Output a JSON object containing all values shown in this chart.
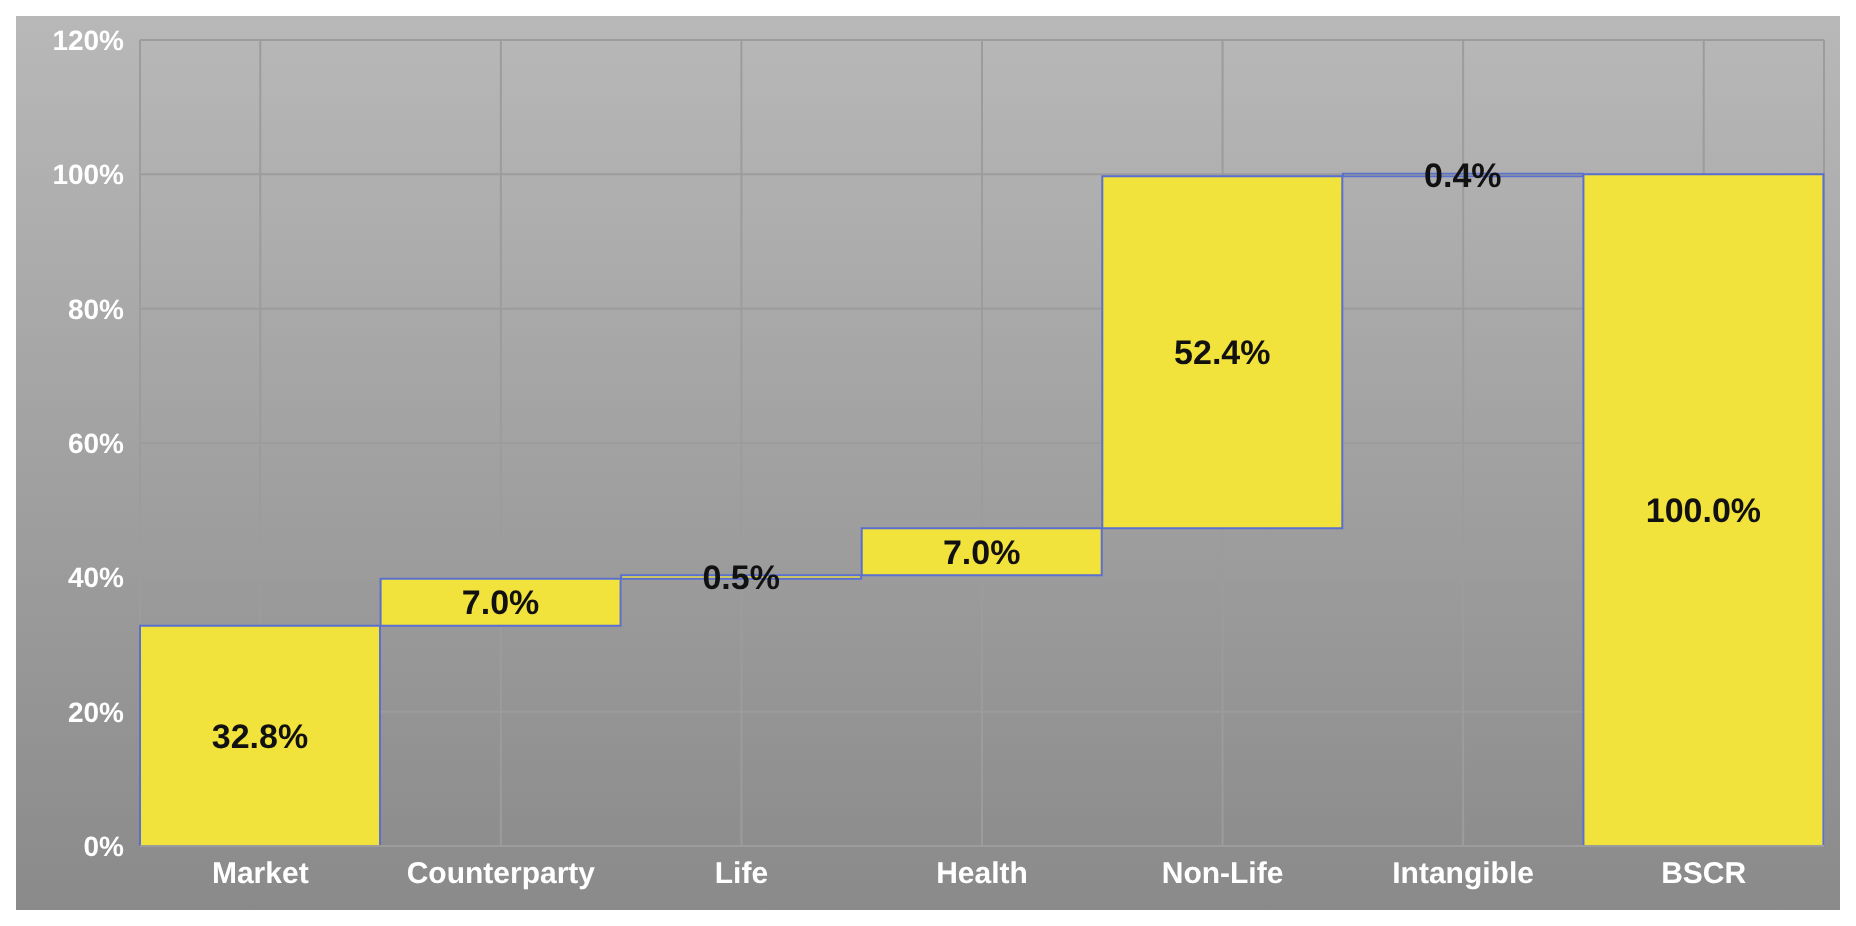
{
  "chart_data": {
    "type": "bar",
    "categories": [
      "Market",
      "Counterparty",
      "Life",
      "Health",
      "Non-Life",
      "Intangible",
      "BSCR"
    ],
    "base": [
      0,
      32.8,
      39.8,
      40.3,
      47.3,
      99.7,
      0
    ],
    "values": [
      32.8,
      7.0,
      0.5,
      7.0,
      52.4,
      0.4,
      100.0
    ],
    "value_labels": [
      "32.8%",
      "7.0%",
      "0.5%",
      "7.0%",
      "52.4%",
      "0.4%",
      "100.0%"
    ],
    "color": "#f2e23c",
    "ylim": [
      0,
      120
    ],
    "yticks": [
      {
        "value": 0,
        "label": "0%"
      },
      {
        "value": 20,
        "label": "20%"
      },
      {
        "value": 40,
        "label": "40%"
      },
      {
        "value": 60,
        "label": "60%"
      },
      {
        "value": 80,
        "label": "80%"
      },
      {
        "value": 100,
        "label": "100%"
      },
      {
        "value": 120,
        "label": "120%"
      }
    ],
    "grid": true
  }
}
